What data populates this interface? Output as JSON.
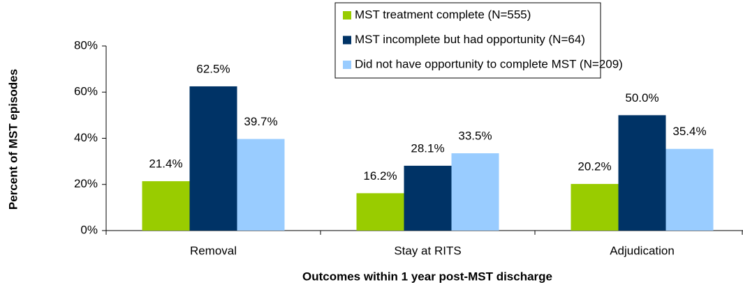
{
  "chart_data": {
    "type": "bar",
    "categories": [
      "Removal",
      "Stay at RITS",
      "Adjudication"
    ],
    "series": [
      {
        "name": "MST treatment complete (N=555)",
        "color": "#99cc00",
        "values": [
          21.4,
          16.2,
          20.2
        ],
        "value_labels": [
          "21.4%",
          "16.2%",
          "20.2%"
        ]
      },
      {
        "name": "MST incomplete but had opportunity (N=64)",
        "color": "#003366",
        "values": [
          62.5,
          28.1,
          50.0
        ],
        "value_labels": [
          "62.5%",
          "28.1%",
          "50.0%"
        ]
      },
      {
        "name": "Did not have opportunity to complete MST (N=209)",
        "color": "#99ccff",
        "values": [
          39.7,
          33.5,
          35.4
        ],
        "value_labels": [
          "39.7%",
          "33.5%",
          "35.4%"
        ]
      }
    ],
    "ylim": [
      0,
      80
    ],
    "yticks": [
      {
        "value": 0,
        "label": "0%"
      },
      {
        "value": 20,
        "label": "20%"
      },
      {
        "value": 40,
        "label": "40%"
      },
      {
        "value": 60,
        "label": "60%"
      },
      {
        "value": 80,
        "label": "80%"
      }
    ],
    "ylabel": "Percent of MST episodes",
    "xlabel": "Outcomes within 1 year post-MST discharge",
    "grid": false,
    "legend": "top-right"
  }
}
